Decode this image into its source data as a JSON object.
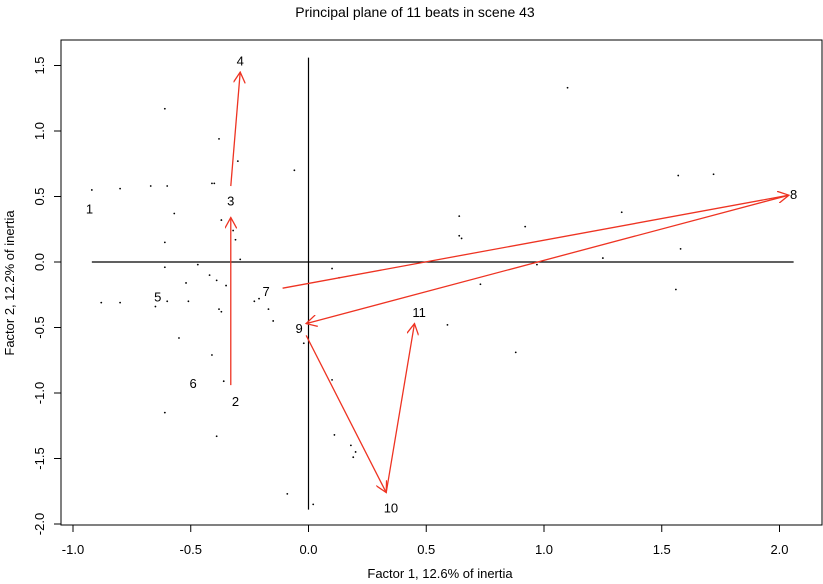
{
  "chart_data": {
    "type": "scatter",
    "title": "Principal plane of 11 beats in scene 43",
    "xlabel": "Factor 1, 12.6% of inertia",
    "ylabel": "Factor 2, 12.2% of inertia",
    "xlim": [
      -1.0,
      2.1
    ],
    "ylim": [
      -2.0,
      1.6
    ],
    "x_ticks": [
      -1.0,
      -0.5,
      0.0,
      0.5,
      1.0,
      1.5,
      2.0
    ],
    "x_tick_labels": [
      "-1.0",
      "-0.5",
      "0.0",
      "0.5",
      "1.0",
      "1.5",
      "2.0"
    ],
    "y_ticks": [
      -2.0,
      -1.5,
      -1.0,
      -0.5,
      0.0,
      0.5,
      1.0,
      1.5
    ],
    "y_tick_labels": [
      "-2.0",
      "-1.5",
      "-1.0",
      "-0.5",
      "0.0",
      "0.5",
      "1.0",
      "1.5"
    ],
    "reference_lines": {
      "x": 0.0,
      "y": 0.0
    },
    "beats": [
      {
        "label": "1",
        "x": -0.93,
        "y": 0.4
      },
      {
        "label": "2",
        "x": -0.31,
        "y": -1.07
      },
      {
        "label": "3",
        "x": -0.33,
        "y": 0.46
      },
      {
        "label": "4",
        "x": -0.29,
        "y": 1.53
      },
      {
        "label": "5",
        "x": -0.64,
        "y": -0.27
      },
      {
        "label": "6",
        "x": -0.49,
        "y": -0.93
      },
      {
        "label": "7",
        "x": -0.18,
        "y": -0.23
      },
      {
        "label": "8",
        "x": 2.06,
        "y": 0.51
      },
      {
        "label": "9",
        "x": -0.04,
        "y": -0.51
      },
      {
        "label": "10",
        "x": 0.35,
        "y": -1.88
      },
      {
        "label": "11",
        "x": 0.47,
        "y": -0.39
      }
    ],
    "arrows": [
      {
        "x1": -0.33,
        "y1": -0.94,
        "x2": -0.33,
        "y2": 0.34
      },
      {
        "x1": -0.33,
        "y1": 0.58,
        "x2": -0.29,
        "y2": 1.45
      },
      {
        "x1": -0.11,
        "y1": -0.2,
        "x2": 2.04,
        "y2": 0.51
      },
      {
        "x1": 2.04,
        "y1": 0.51,
        "x2": -0.01,
        "y2": -0.47
      },
      {
        "x1": -0.01,
        "y1": -0.56,
        "x2": 0.33,
        "y2": -1.76
      },
      {
        "x1": 0.33,
        "y1": -1.76,
        "x2": 0.45,
        "y2": -0.47
      }
    ],
    "points": [
      {
        "x": -0.92,
        "y": 0.55
      },
      {
        "x": -0.8,
        "y": 0.56
      },
      {
        "x": -0.67,
        "y": 0.58
      },
      {
        "x": -0.6,
        "y": 0.58
      },
      {
        "x": -0.61,
        "y": 1.17
      },
      {
        "x": -0.38,
        "y": 0.94
      },
      {
        "x": -0.57,
        "y": 0.37
      },
      {
        "x": -0.41,
        "y": 0.6
      },
      {
        "x": -0.4,
        "y": 0.6
      },
      {
        "x": -0.3,
        "y": 0.77
      },
      {
        "x": -0.06,
        "y": 0.7
      },
      {
        "x": -0.61,
        "y": 0.15
      },
      {
        "x": -0.37,
        "y": 0.32
      },
      {
        "x": -0.32,
        "y": 0.24
      },
      {
        "x": -0.31,
        "y": 0.17
      },
      {
        "x": -0.29,
        "y": 0.02
      },
      {
        "x": -0.61,
        "y": -0.04
      },
      {
        "x": -0.47,
        "y": -0.02
      },
      {
        "x": -0.42,
        "y": -0.1
      },
      {
        "x": -0.39,
        "y": -0.14
      },
      {
        "x": -0.35,
        "y": -0.18
      },
      {
        "x": -0.52,
        "y": -0.16
      },
      {
        "x": -0.88,
        "y": -0.31
      },
      {
        "x": -0.8,
        "y": -0.31
      },
      {
        "x": -0.65,
        "y": -0.34
      },
      {
        "x": -0.6,
        "y": -0.3
      },
      {
        "x": -0.51,
        "y": -0.3
      },
      {
        "x": -0.38,
        "y": -0.36
      },
      {
        "x": -0.37,
        "y": -0.38
      },
      {
        "x": -0.21,
        "y": -0.28
      },
      {
        "x": -0.23,
        "y": -0.3
      },
      {
        "x": -0.17,
        "y": -0.36
      },
      {
        "x": -0.15,
        "y": -0.45
      },
      {
        "x": -0.55,
        "y": -0.58
      },
      {
        "x": -0.41,
        "y": -0.71
      },
      {
        "x": -0.36,
        "y": -0.91
      },
      {
        "x": -0.61,
        "y": -1.15
      },
      {
        "x": -0.39,
        "y": -1.33
      },
      {
        "x": -0.02,
        "y": -0.62
      },
      {
        "x": 0.1,
        "y": -0.05
      },
      {
        "x": 0.13,
        "y": -0.12
      },
      {
        "x": 0.1,
        "y": -0.9
      },
      {
        "x": 0.11,
        "y": -1.32
      },
      {
        "x": 0.18,
        "y": -1.4
      },
      {
        "x": 0.2,
        "y": -1.45
      },
      {
        "x": 0.19,
        "y": -1.49
      },
      {
        "x": -0.09,
        "y": -1.77
      },
      {
        "x": 0.02,
        "y": -1.85
      },
      {
        "x": 0.64,
        "y": 0.35
      },
      {
        "x": 0.64,
        "y": 0.2
      },
      {
        "x": 0.65,
        "y": 0.18
      },
      {
        "x": 0.73,
        "y": -0.17
      },
      {
        "x": 0.59,
        "y": -0.48
      },
      {
        "x": 0.88,
        "y": -0.69
      },
      {
        "x": 0.92,
        "y": 0.27
      },
      {
        "x": 0.97,
        "y": -0.02
      },
      {
        "x": 1.1,
        "y": 1.33
      },
      {
        "x": 1.25,
        "y": 0.03
      },
      {
        "x": 1.33,
        "y": 0.38
      },
      {
        "x": 1.56,
        "y": -0.21
      },
      {
        "x": 1.57,
        "y": 0.66
      },
      {
        "x": 1.58,
        "y": 0.1
      },
      {
        "x": 1.72,
        "y": 0.67
      }
    ],
    "colors": {
      "arrow": "#ee3322",
      "axis": "#000000",
      "points": "#000000"
    },
    "grid": false,
    "legend": "none"
  }
}
